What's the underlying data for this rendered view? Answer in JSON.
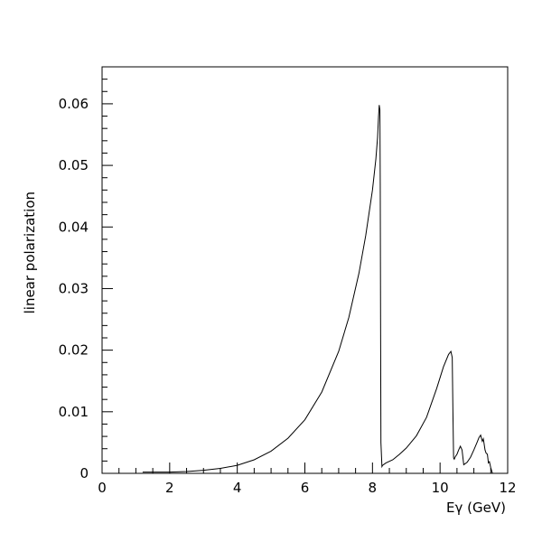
{
  "chart_data": {
    "type": "line",
    "title": "",
    "xlabel": "Eγ (GeV)",
    "ylabel": "linear polarization",
    "xlim": [
      0,
      12
    ],
    "ylim": [
      0,
      0.066
    ],
    "x_ticks": [
      0,
      2,
      4,
      6,
      8,
      10,
      12
    ],
    "x_tick_labels": [
      "0",
      "2",
      "4",
      "6",
      "8",
      "10",
      "12"
    ],
    "y_ticks": [
      0,
      0.01,
      0.02,
      0.03,
      0.04,
      0.05,
      0.06
    ],
    "y_tick_labels": [
      "0",
      "0.01",
      "0.02",
      "0.03",
      "0.04",
      "0.05",
      "0.06"
    ],
    "grid": false,
    "line_color": "#000000",
    "series": [
      {
        "x": [
          1.2,
          2.0,
          2.5,
          3.0,
          3.5,
          4.0,
          4.5,
          5.0,
          5.5,
          6.0,
          6.5,
          7.0,
          7.3,
          7.6,
          7.8,
          8.0,
          8.1,
          8.15,
          8.18,
          8.2,
          8.22,
          8.23,
          8.24,
          8.25,
          8.28,
          8.3,
          8.4,
          8.6,
          8.8,
          9.0,
          9.3,
          9.6,
          9.9,
          10.1,
          10.25,
          10.32,
          10.36,
          10.38,
          10.4,
          10.42,
          10.45,
          10.5,
          10.55,
          10.6,
          10.65,
          10.7,
          10.8,
          10.9,
          11.0,
          11.1,
          11.15,
          11.2,
          11.25,
          11.28,
          11.3,
          11.33,
          11.36,
          11.4,
          11.43,
          11.46,
          11.5,
          11.55
        ],
        "y": [
          0.0002,
          0.0002,
          0.0003,
          0.0005,
          0.0008,
          0.0013,
          0.0022,
          0.0036,
          0.0057,
          0.0087,
          0.0132,
          0.0198,
          0.0253,
          0.0325,
          0.0386,
          0.046,
          0.051,
          0.0545,
          0.058,
          0.0598,
          0.059,
          0.047,
          0.025,
          0.005,
          0.0011,
          0.0013,
          0.0017,
          0.0022,
          0.0031,
          0.0041,
          0.0061,
          0.0091,
          0.0138,
          0.0173,
          0.0193,
          0.0198,
          0.0188,
          0.01,
          0.0025,
          0.0023,
          0.0027,
          0.0031,
          0.0038,
          0.0044,
          0.0038,
          0.0014,
          0.0018,
          0.0026,
          0.0038,
          0.0051,
          0.0058,
          0.0062,
          0.0052,
          0.0056,
          0.0049,
          0.0038,
          0.0033,
          0.0031,
          0.0017,
          0.0019,
          0.0009,
          0.0
        ]
      }
    ]
  }
}
